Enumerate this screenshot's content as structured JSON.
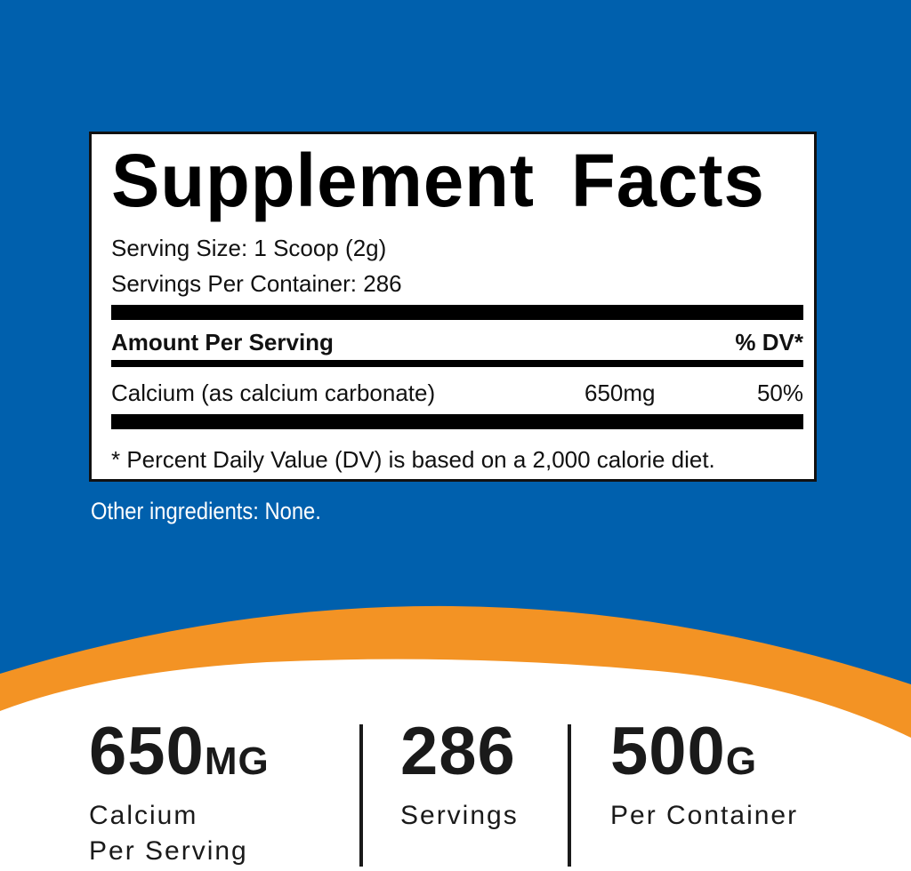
{
  "colors": {
    "blue": "#0060ad",
    "orange": "#f39324",
    "white": "#ffffff",
    "text": "#111111"
  },
  "facts": {
    "title": "Supplement Facts",
    "serving_size": "Serving Size: 1 Scoop (2g)",
    "servings_per_container": "Servings Per Container: 286",
    "amount_header": "Amount Per Serving",
    "dv_header": "% DV*",
    "rows": [
      {
        "name": "Calcium (as calcium carbonate)",
        "amount": "650mg",
        "dv": "50%"
      }
    ],
    "footnote": "* Percent Daily Value (DV) is based on a 2,000 calorie diet."
  },
  "other_ingredients": "Other ingredients: None.",
  "stats": [
    {
      "value": "650",
      "unit": "MG",
      "label1": "Calcium",
      "label2": "Per Serving"
    },
    {
      "value": "286",
      "unit": "",
      "label1": "Servings",
      "label2": ""
    },
    {
      "value": "500",
      "unit": "G",
      "label1": "Per Container",
      "label2": ""
    }
  ]
}
